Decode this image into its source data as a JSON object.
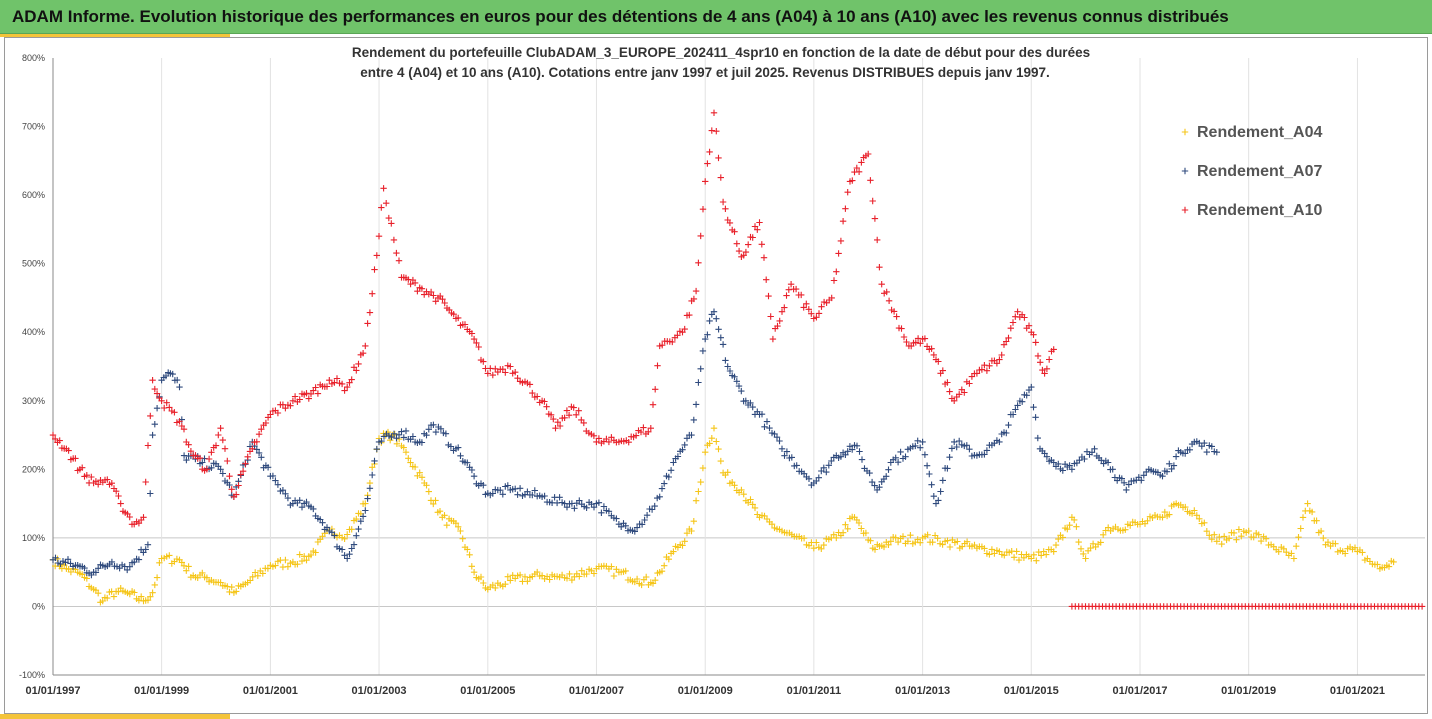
{
  "banner": {
    "title": "ADAM Informe. Evolution historique des performances en euros pour des détentions de 4 ans (A04) à 10 ans (A10) avec les revenus connus distribués"
  },
  "colors": {
    "banner_bg": "#70c36a",
    "accent": "#f4c43a",
    "A04": "#f5c518",
    "A07": "#2f4a7d",
    "A10": "#e8202a"
  },
  "chart_data": {
    "type": "scatter",
    "title_line1": "Rendement du portefeuille ClubADAM_3_EUROPE_202411_4spr10  en fonction de la date de début pour des durées",
    "title_line2": "entre 4 (A04) et 10 ans (A10). Cotations entre janv 1997 et juil 2025. Revenus DISTRIBUES depuis janv 1997.",
    "xlabel": "",
    "ylabel": "",
    "x_range": [
      "1997-01-01",
      "2022-03-31"
    ],
    "ylim": [
      -100,
      800
    ],
    "y_ticks": [
      -100,
      0,
      100,
      200,
      300,
      400,
      500,
      600,
      700,
      800
    ],
    "y_tick_labels": [
      "-100%",
      "0%",
      "100%",
      "200%",
      "300%",
      "400%",
      "500%",
      "600%",
      "700%",
      "800%"
    ],
    "x_ticks": [
      "1997-01-01",
      "1999-01-01",
      "2001-01-01",
      "2003-01-01",
      "2005-01-01",
      "2007-01-01",
      "2009-01-01",
      "2011-01-01",
      "2013-01-01",
      "2015-01-01",
      "2017-01-01",
      "2019-01-01",
      "2021-01-01"
    ],
    "x_tick_labels": [
      "01/01/1997",
      "01/01/1999",
      "01/01/2001",
      "01/01/2003",
      "01/01/2005",
      "01/01/2007",
      "01/01/2009",
      "01/01/2011",
      "01/01/2013",
      "01/01/2015",
      "01/01/2017",
      "01/01/2019",
      "01/01/2021"
    ],
    "grid_y": [
      0,
      100
    ],
    "legend": "right",
    "marker": "+",
    "series": [
      {
        "name": "Rendement_A04",
        "color": "#f5c518",
        "points": [
          [
            "1997-01-01",
            68
          ],
          [
            "1997-04-01",
            55
          ],
          [
            "1997-07-01",
            48
          ],
          [
            "1997-10-01",
            25
          ],
          [
            "1997-12-01",
            8
          ],
          [
            "1998-03-01",
            22
          ],
          [
            "1998-06-01",
            18
          ],
          [
            "1998-09-01",
            8
          ],
          [
            "1998-11-01",
            20
          ],
          [
            "1999-01-01",
            70
          ],
          [
            "1999-05-01",
            68
          ],
          [
            "1999-08-01",
            45
          ],
          [
            "1999-11-01",
            42
          ],
          [
            "2000-02-01",
            35
          ],
          [
            "2000-05-01",
            20
          ],
          [
            "2000-08-01",
            35
          ],
          [
            "2001-01-01",
            60
          ],
          [
            "2001-06-01",
            65
          ],
          [
            "2001-10-01",
            75
          ],
          [
            "2002-02-01",
            110
          ],
          [
            "2002-06-01",
            105
          ],
          [
            "2002-10-01",
            150
          ],
          [
            "2003-01-01",
            245
          ],
          [
            "2003-04-01",
            250
          ],
          [
            "2003-07-01",
            225
          ],
          [
            "2003-11-01",
            180
          ],
          [
            "2004-03-01",
            130
          ],
          [
            "2004-07-01",
            110
          ],
          [
            "2004-10-01",
            50
          ],
          [
            "2005-01-01",
            25
          ],
          [
            "2005-06-01",
            38
          ],
          [
            "2006-01-01",
            45
          ],
          [
            "2006-06-01",
            42
          ],
          [
            "2007-01-01",
            55
          ],
          [
            "2007-06-01",
            50
          ],
          [
            "2007-10-01",
            40
          ],
          [
            "2008-01-01",
            35
          ],
          [
            "2008-03-01",
            50
          ],
          [
            "2008-06-01",
            80
          ],
          [
            "2008-10-01",
            110
          ],
          [
            "2009-01-01",
            225
          ],
          [
            "2009-03-01",
            260
          ],
          [
            "2009-05-01",
            195
          ],
          [
            "2009-09-01",
            170
          ],
          [
            "2010-01-01",
            130
          ],
          [
            "2010-06-01",
            110
          ],
          [
            "2011-01-01",
            85
          ],
          [
            "2011-06-01",
            100
          ],
          [
            "2011-10-01",
            130
          ],
          [
            "2012-02-01",
            85
          ],
          [
            "2012-06-01",
            95
          ],
          [
            "2013-01-01",
            100
          ],
          [
            "2013-06-01",
            95
          ],
          [
            "2014-01-01",
            85
          ],
          [
            "2014-06-01",
            80
          ],
          [
            "2015-01-01",
            70
          ],
          [
            "2015-06-01",
            80
          ],
          [
            "2015-10-01",
            130
          ],
          [
            "2016-01-01",
            70
          ],
          [
            "2016-06-01",
            115
          ],
          [
            "2017-01-01",
            120
          ],
          [
            "2017-06-01",
            130
          ],
          [
            "2017-09-01",
            150
          ],
          [
            "2018-01-01",
            140
          ],
          [
            "2018-06-01",
            95
          ],
          [
            "2019-01-01",
            110
          ],
          [
            "2019-06-01",
            90
          ],
          [
            "2019-11-01",
            70
          ],
          [
            "2020-02-01",
            150
          ],
          [
            "2020-06-01",
            90
          ],
          [
            "2021-01-01",
            80
          ],
          [
            "2021-06-01",
            55
          ],
          [
            "2021-09-01",
            65
          ]
        ]
      },
      {
        "name": "Rendement_A07",
        "color": "#2f4a7d",
        "points": [
          [
            "1997-01-01",
            68
          ],
          [
            "1997-06-01",
            60
          ],
          [
            "1997-10-01",
            50
          ],
          [
            "1998-02-01",
            65
          ],
          [
            "1998-06-01",
            58
          ],
          [
            "1998-10-01",
            90
          ],
          [
            "1998-11-01",
            250
          ],
          [
            "1999-01-01",
            330
          ],
          [
            "1999-03-01",
            340
          ],
          [
            "1999-05-01",
            320
          ],
          [
            "1999-06-01",
            220
          ],
          [
            "1999-10-01",
            210
          ],
          [
            "2000-02-01",
            200
          ],
          [
            "2000-05-01",
            160
          ],
          [
            "2000-09-01",
            240
          ],
          [
            "2001-01-01",
            190
          ],
          [
            "2001-06-01",
            150
          ],
          [
            "2001-10-01",
            145
          ],
          [
            "2002-02-01",
            110
          ],
          [
            "2002-06-01",
            70
          ],
          [
            "2002-10-01",
            140
          ],
          [
            "2003-01-01",
            240
          ],
          [
            "2003-06-01",
            255
          ],
          [
            "2003-10-01",
            240
          ],
          [
            "2004-01-01",
            265
          ],
          [
            "2004-06-01",
            230
          ],
          [
            "2004-10-01",
            190
          ],
          [
            "2005-01-01",
            165
          ],
          [
            "2005-06-01",
            170
          ],
          [
            "2006-01-01",
            160
          ],
          [
            "2006-06-01",
            150
          ],
          [
            "2007-01-01",
            150
          ],
          [
            "2007-06-01",
            120
          ],
          [
            "2007-10-01",
            115
          ],
          [
            "2008-03-01",
            160
          ],
          [
            "2008-06-01",
            210
          ],
          [
            "2008-10-01",
            250
          ],
          [
            "2009-01-01",
            390
          ],
          [
            "2009-03-01",
            430
          ],
          [
            "2009-06-01",
            350
          ],
          [
            "2009-10-01",
            300
          ],
          [
            "2010-01-01",
            280
          ],
          [
            "2010-06-01",
            230
          ],
          [
            "2011-01-01",
            180
          ],
          [
            "2011-06-01",
            220
          ],
          [
            "2011-10-01",
            235
          ],
          [
            "2012-03-01",
            170
          ],
          [
            "2012-06-01",
            210
          ],
          [
            "2013-01-01",
            240
          ],
          [
            "2013-04-01",
            150
          ],
          [
            "2013-08-01",
            240
          ],
          [
            "2014-01-01",
            220
          ],
          [
            "2014-06-01",
            240
          ],
          [
            "2014-09-01",
            280
          ],
          [
            "2015-01-01",
            320
          ],
          [
            "2015-03-01",
            230
          ],
          [
            "2015-06-01",
            210
          ],
          [
            "2015-10-01",
            200
          ],
          [
            "2016-03-01",
            230
          ],
          [
            "2016-07-01",
            200
          ],
          [
            "2016-10-01",
            170
          ],
          [
            "2017-03-01",
            200
          ],
          [
            "2017-06-01",
            190
          ],
          [
            "2017-10-01",
            225
          ],
          [
            "2018-01-01",
            240
          ],
          [
            "2018-06-01",
            225
          ]
        ]
      },
      {
        "name": "Rendement_A10",
        "color": "#e8202a",
        "points": [
          [
            "1997-01-01",
            250
          ],
          [
            "1997-04-01",
            230
          ],
          [
            "1997-07-01",
            200
          ],
          [
            "1997-10-01",
            180
          ],
          [
            "1998-01-01",
            185
          ],
          [
            "1998-04-01",
            150
          ],
          [
            "1998-07-01",
            120
          ],
          [
            "1998-09-01",
            130
          ],
          [
            "1998-11-01",
            330
          ],
          [
            "1999-01-01",
            300
          ],
          [
            "1999-05-01",
            270
          ],
          [
            "1999-08-01",
            220
          ],
          [
            "1999-11-01",
            200
          ],
          [
            "2000-02-01",
            260
          ],
          [
            "2000-05-01",
            160
          ],
          [
            "2000-09-01",
            230
          ],
          [
            "2001-01-01",
            280
          ],
          [
            "2001-06-01",
            300
          ],
          [
            "2001-10-01",
            310
          ],
          [
            "2002-02-01",
            330
          ],
          [
            "2002-06-01",
            320
          ],
          [
            "2002-10-01",
            380
          ],
          [
            "2003-01-01",
            540
          ],
          [
            "2003-02-01",
            610
          ],
          [
            "2003-06-01",
            480
          ],
          [
            "2003-10-01",
            465
          ],
          [
            "2004-02-01",
            450
          ],
          [
            "2004-06-01",
            420
          ],
          [
            "2004-10-01",
            390
          ],
          [
            "2005-01-01",
            340
          ],
          [
            "2005-06-01",
            350
          ],
          [
            "2006-01-01",
            300
          ],
          [
            "2006-04-01",
            260
          ],
          [
            "2006-08-01",
            290
          ],
          [
            "2007-01-01",
            240
          ],
          [
            "2007-06-01",
            240
          ],
          [
            "2008-01-01",
            260
          ],
          [
            "2008-03-01",
            380
          ],
          [
            "2008-08-01",
            400
          ],
          [
            "2008-11-01",
            460
          ],
          [
            "2009-01-01",
            620
          ],
          [
            "2009-03-01",
            720
          ],
          [
            "2009-05-01",
            590
          ],
          [
            "2009-09-01",
            510
          ],
          [
            "2010-01-01",
            560
          ],
          [
            "2010-04-01",
            390
          ],
          [
            "2010-08-01",
            470
          ],
          [
            "2011-01-01",
            420
          ],
          [
            "2011-05-01",
            450
          ],
          [
            "2011-09-01",
            620
          ],
          [
            "2012-01-01",
            660
          ],
          [
            "2012-04-01",
            470
          ],
          [
            "2012-10-01",
            380
          ],
          [
            "2013-01-01",
            390
          ],
          [
            "2013-04-01",
            360
          ],
          [
            "2013-08-01",
            300
          ],
          [
            "2014-01-01",
            340
          ],
          [
            "2014-06-01",
            360
          ],
          [
            "2014-10-01",
            430
          ],
          [
            "2015-01-01",
            400
          ],
          [
            "2015-04-01",
            340
          ],
          [
            "2015-06-01",
            375
          ]
        ]
      }
    ],
    "flat_series": {
      "name": "Rendement_A10",
      "x_start": "2015-10-01",
      "x_end": "2022-03-31",
      "value": 0
    }
  }
}
